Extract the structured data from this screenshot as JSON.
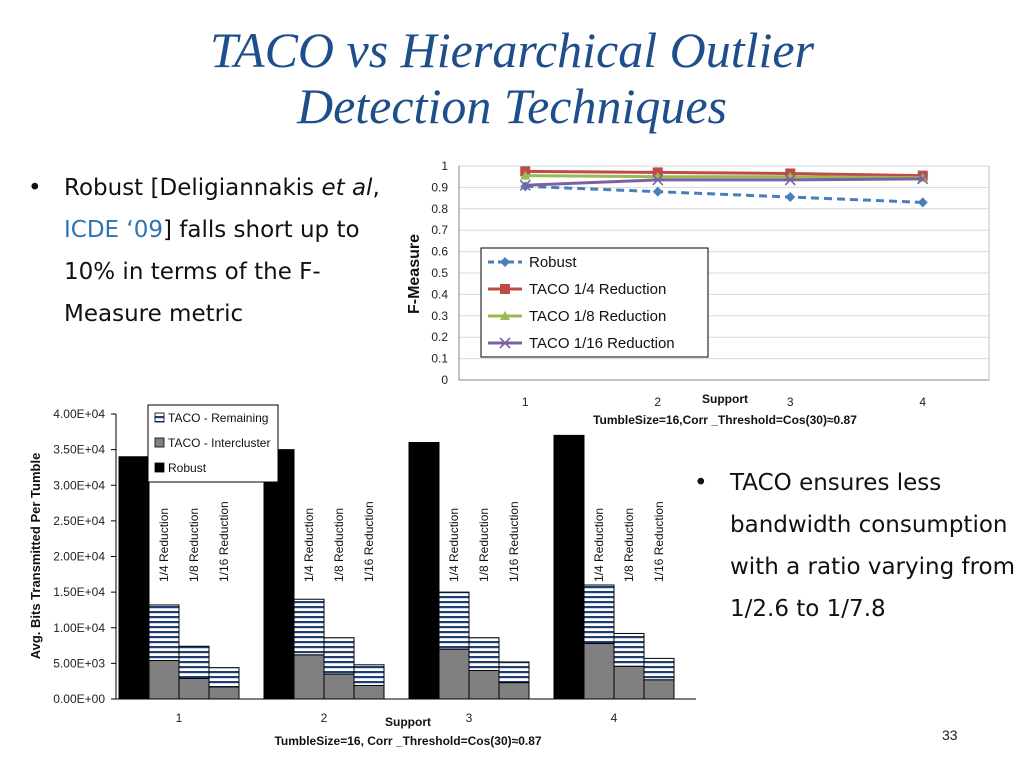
{
  "slide": {
    "title_line1": "TACO vs Hierarchical Outlier",
    "title_line2": "Detection Techniques",
    "bullet1": {
      "symbol": "•",
      "part1": "Robust [Deligiannakis ",
      "part2_italic": "et al",
      "part3": ", ",
      "part4_link": "ICDE ‘09",
      "part5": "] falls short up to 10% in terms of the F-Measure metric"
    },
    "bullet2": {
      "symbol": "•",
      "text": "TACO ensures less bandwidth consumption with a ratio varying  from 1/2.6 to 1/7.8"
    },
    "slide_number": "33"
  },
  "chart_data": [
    {
      "type": "line",
      "ylabel": "F-Measure",
      "xlabel": "Support",
      "subtitle": "TumbleSize=16,Corr _Threshold=Cos(30)≈0.87",
      "categories": [
        "1",
        "2",
        "3",
        "4"
      ],
      "ylim": [
        0,
        1
      ],
      "yticks": [
        "0",
        "0.1",
        "0.2",
        "0.3",
        "0.4",
        "0.5",
        "0.6",
        "0.7",
        "0.8",
        "0.9",
        "1"
      ],
      "grid": true,
      "legend_position": "inside-lower-left",
      "series": [
        {
          "name": "Robust",
          "values": [
            0.905,
            0.88,
            0.855,
            0.83
          ],
          "color": "#4a7ebb",
          "marker": "diamond",
          "dashed": true
        },
        {
          "name": "TACO 1/4 Reduction",
          "values": [
            0.975,
            0.97,
            0.965,
            0.955
          ],
          "color": "#be4b48",
          "marker": "square",
          "dashed": false
        },
        {
          "name": "TACO 1/8 Reduction",
          "values": [
            0.955,
            0.95,
            0.95,
            0.945
          ],
          "color": "#98b954",
          "marker": "triangle",
          "dashed": false
        },
        {
          "name": "TACO 1/16 Reduction",
          "values": [
            0.91,
            0.935,
            0.935,
            0.94
          ],
          "color": "#7d60a0",
          "marker": "x",
          "dashed": false
        }
      ]
    },
    {
      "type": "bar",
      "ylabel": "Avg. Bits Transmitted Per Tumble",
      "xlabel": "Support",
      "subtitle": "TumbleSize=16, Corr _Threshold=Cos(30)≈0.87",
      "categories": [
        "1",
        "2",
        "3",
        "4"
      ],
      "ylim": [
        0,
        40000
      ],
      "yticks": [
        "0.00E+00",
        "5.00E+03",
        "1.00E+04",
        "1.50E+04",
        "2.00E+04",
        "2.50E+04",
        "3.00E+04",
        "3.50E+04",
        "4.00E+04"
      ],
      "stacked": true,
      "grid": false,
      "legend_position": "top-left-inside",
      "legend": [
        {
          "name": "TACO - Remaining",
          "pattern": "stripes"
        },
        {
          "name": "TACO - Intercluster",
          "color": "#808080"
        },
        {
          "name": "Robust",
          "color": "#000000"
        }
      ],
      "bar_labels": [
        "1/4 Reduction",
        "1/8 Reduction",
        "1/16 Reduction"
      ],
      "robust": [
        34000,
        35000,
        36000,
        37000
      ],
      "intercluster": [
        [
          5400,
          2900,
          1700
        ],
        [
          6200,
          3500,
          1900
        ],
        [
          7000,
          4000,
          2300
        ],
        [
          7800,
          4600,
          2700
        ]
      ],
      "remaining": [
        [
          7800,
          4500,
          2700
        ],
        [
          7800,
          5100,
          2900
        ],
        [
          8000,
          4600,
          2900
        ],
        [
          8200,
          4600,
          3000
        ]
      ]
    }
  ]
}
